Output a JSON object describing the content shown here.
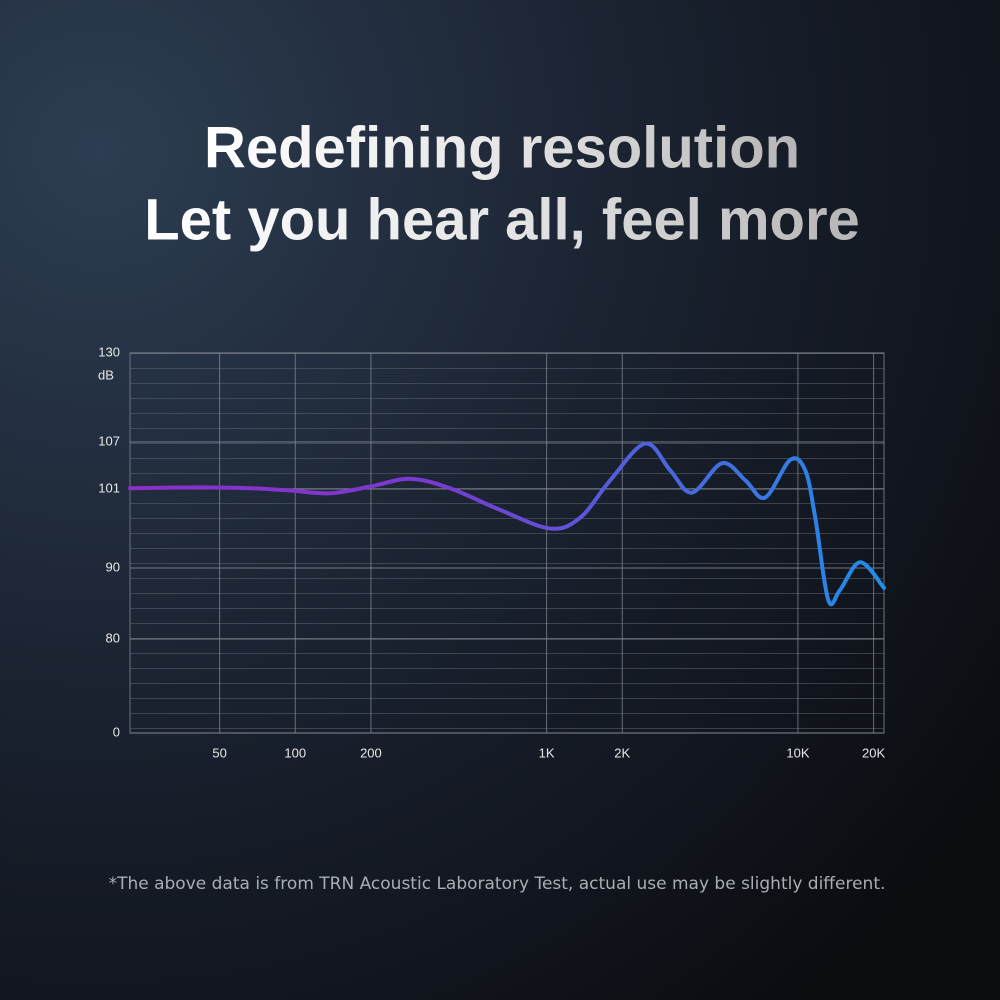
{
  "chart_data": {
    "type": "line",
    "title": [
      "Redefining resolution",
      "Let you hear all, feel more"
    ],
    "y_label": "dB",
    "note": "*The above data is from TRN Acoustic Laboratory Test, actual use may be slightly different.",
    "log_x": true,
    "grid": true,
    "xlim": [
      22,
      22000
    ],
    "xticks": [
      50,
      100,
      200,
      {
        "value": 1000,
        "label": "1K"
      },
      {
        "value": 2000,
        "label": "2K"
      },
      {
        "value": 10000,
        "label": "10K"
      },
      {
        "value": 20000,
        "label": "20K"
      }
    ],
    "ylim": [
      0,
      130
    ],
    "yticks": [
      0,
      80,
      90,
      101,
      107,
      130
    ],
    "x": [
      22,
      42,
      66,
      95,
      137,
      198,
      286,
      413,
      652,
      1032,
      1360,
      1790,
      2470,
      3100,
      3790,
      4990,
      6180,
      7400,
      9310,
      10690,
      11720,
      13200,
      14700,
      17700,
      22000
    ],
    "series": [
      {
        "color": [
          "#8a2fc8",
          "#1f8ee8"
        ],
        "values": [
          101.1,
          101.2,
          101.1,
          100.8,
          100.4,
          101.3,
          102.3,
          101.1,
          98.1,
          95.5,
          97,
          102.1,
          106.8,
          103.4,
          100.5,
          104.3,
          102.1,
          99.8,
          104.7,
          103.4,
          97,
          85.5,
          86.9,
          90.8,
          87.2
        ]
      }
    ]
  }
}
